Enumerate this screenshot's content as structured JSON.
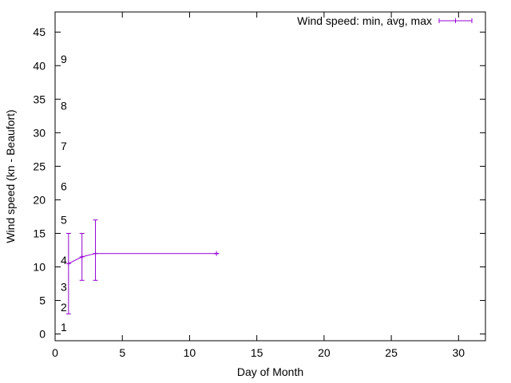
{
  "chart_data": {
    "type": "line",
    "title": "",
    "xlabel": "Day of Month",
    "ylabel": "Wind speed (kn - Beaufort)",
    "xlim": [
      0,
      32
    ],
    "ylim": [
      -1,
      48
    ],
    "x_ticks": [
      0,
      5,
      10,
      15,
      20,
      25,
      30
    ],
    "y_ticks": [
      0,
      5,
      10,
      15,
      20,
      25,
      30,
      35,
      40,
      45
    ],
    "grid": false,
    "legend_position": "top-right",
    "colors": {
      "series": "#9400d3",
      "axis": "#000000"
    },
    "series": [
      {
        "name": "Wind speed: min, avg, max",
        "style": "yerrorlines",
        "points": [
          {
            "x": 1,
            "y": 10.5,
            "ymin": 3,
            "ymax": 15
          },
          {
            "x": 2,
            "y": 11.5,
            "ymin": 8,
            "ymax": 15
          },
          {
            "x": 3,
            "y": 12,
            "ymin": 8,
            "ymax": 17
          },
          {
            "x": 12,
            "y": 12,
            "ymin": 12,
            "ymax": 12
          }
        ]
      }
    ],
    "beaufort_labels": [
      {
        "text": "1",
        "y": 1
      },
      {
        "text": "2",
        "y": 4
      },
      {
        "text": "3",
        "y": 7
      },
      {
        "text": "4",
        "y": 11
      },
      {
        "text": "5",
        "y": 17
      },
      {
        "text": "6",
        "y": 22
      },
      {
        "text": "7",
        "y": 28
      },
      {
        "text": "8",
        "y": 34
      },
      {
        "text": "9",
        "y": 41
      }
    ]
  }
}
